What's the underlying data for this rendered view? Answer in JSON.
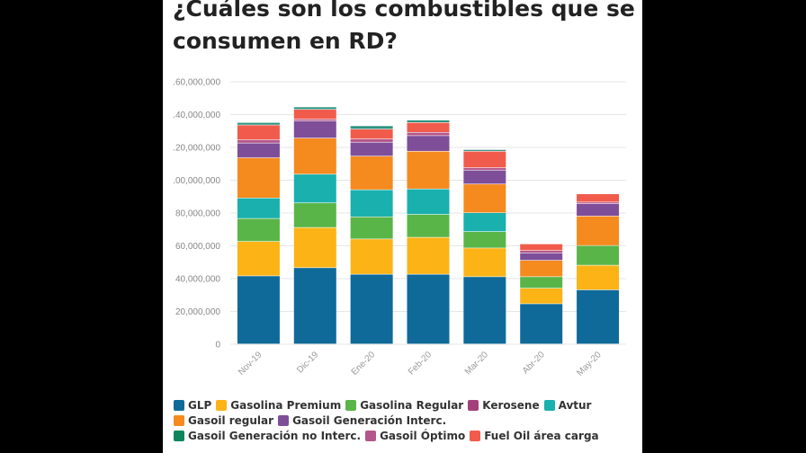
{
  "title": "¿Cuáles son los combustibles que se consumen en RD?",
  "chart_data": {
    "type": "bar",
    "stacked": true,
    "categories": [
      "Nov-19",
      "Dic-19",
      "Ene-20",
      "Feb-20",
      "Mar-20",
      "Abr-20",
      "May-20"
    ],
    "ylim": [
      0,
      160000000
    ],
    "yticks": [
      0,
      20000000,
      40000000,
      60000000,
      80000000,
      100000000,
      120000000,
      140000000,
      160000000
    ],
    "ytick_labels": [
      "0",
      "20,000,000",
      "40,000,000",
      "60,000,000",
      "80,000,000",
      ".00,000,000",
      ".20,000,000",
      ".40,000,000",
      ".60,000,000"
    ],
    "grid": true,
    "legend_position": "bottom",
    "series": [
      {
        "name": "GLP",
        "color": "#0f6a99",
        "values": [
          41500000,
          46500000,
          42500000,
          42500000,
          41000000,
          24500000,
          33000000
        ]
      },
      {
        "name": "Gasolina Premium",
        "color": "#fbb316",
        "values": [
          21000000,
          24500000,
          21500000,
          22500000,
          17500000,
          9500000,
          15000000
        ]
      },
      {
        "name": "Gasolina Regular",
        "color": "#59b548",
        "values": [
          14000000,
          15000000,
          13500000,
          14000000,
          10000000,
          7000000,
          12000000
        ]
      },
      {
        "name": "Kerosene",
        "color": "#a53f79",
        "values": [
          0,
          0,
          0,
          0,
          0,
          0,
          0
        ]
      },
      {
        "name": "Avtur",
        "color": "#19b0ae",
        "values": [
          12500000,
          17500000,
          16500000,
          15500000,
          11500000,
          0,
          0
        ]
      },
      {
        "name": "Gasoil regular",
        "color": "#f58a1f",
        "values": [
          24500000,
          22000000,
          20500000,
          23000000,
          17500000,
          10000000,
          18000000
        ]
      },
      {
        "name": "Gasoil Generación Interc.",
        "color": "#7e4e99",
        "values": [
          9000000,
          10500000,
          8500000,
          9500000,
          8500000,
          4500000,
          7500000
        ]
      },
      {
        "name": "Gasoil Generación no Interc.",
        "color": "#10845d",
        "values": [
          0,
          0,
          0,
          0,
          0,
          0,
          0
        ]
      },
      {
        "name": "Gasoil Óptimo",
        "color": "#b5568a",
        "values": [
          2000000,
          1000000,
          2000000,
          2000000,
          1500000,
          1500000,
          1000000
        ]
      },
      {
        "name": "Fuel Oil área carga",
        "color": "#f15b4b",
        "values": [
          9000000,
          6000000,
          6000000,
          6000000,
          10000000,
          4000000,
          5000000
        ]
      },
      {
        "name": "",
        "color": "#2e9481",
        "values": [
          1500000,
          1500000,
          2000000,
          1500000,
          1000000,
          0,
          0
        ]
      }
    ]
  }
}
